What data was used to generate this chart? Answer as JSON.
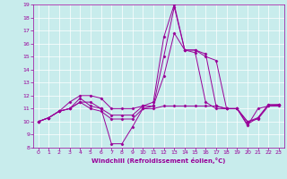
{
  "xlabel": "Windchill (Refroidissement éolien,°C)",
  "background_color": "#c8ecec",
  "line_color": "#990099",
  "grid_color": "#ffffff",
  "xlim": [
    -0.5,
    23.5
  ],
  "ylim": [
    8,
    19
  ],
  "xticks": [
    0,
    1,
    2,
    3,
    4,
    5,
    6,
    7,
    8,
    9,
    10,
    11,
    12,
    13,
    14,
    15,
    16,
    17,
    18,
    19,
    20,
    21,
    22,
    23
  ],
  "yticks": [
    8,
    9,
    10,
    11,
    12,
    13,
    14,
    15,
    16,
    17,
    18,
    19
  ],
  "series": [
    [
      10.0,
      10.3,
      10.8,
      11.0,
      11.5,
      11.5,
      11.0,
      8.3,
      8.3,
      9.6,
      11.0,
      11.2,
      15.0,
      18.8,
      15.5,
      15.5,
      15.0,
      14.7,
      11.0,
      11.0,
      9.7,
      11.0,
      11.2,
      11.3
    ],
    [
      10.0,
      10.3,
      10.8,
      11.0,
      11.5,
      11.0,
      10.8,
      10.2,
      10.2,
      10.2,
      11.0,
      11.0,
      11.2,
      11.2,
      11.2,
      11.2,
      11.2,
      11.2,
      11.0,
      11.0,
      10.0,
      10.2,
      11.2,
      11.2
    ],
    [
      10.0,
      10.3,
      10.8,
      11.0,
      11.8,
      11.2,
      11.0,
      10.5,
      10.5,
      10.5,
      11.2,
      11.5,
      16.5,
      19.0,
      15.5,
      15.3,
      11.5,
      11.0,
      11.0,
      11.0,
      9.8,
      10.3,
      11.3,
      11.3
    ],
    [
      10.0,
      10.3,
      10.8,
      11.5,
      12.0,
      12.0,
      11.8,
      11.0,
      11.0,
      11.0,
      11.2,
      11.2,
      13.5,
      16.8,
      15.5,
      15.5,
      15.2,
      11.2,
      11.0,
      11.0,
      10.0,
      10.3,
      11.3,
      11.3
    ]
  ]
}
